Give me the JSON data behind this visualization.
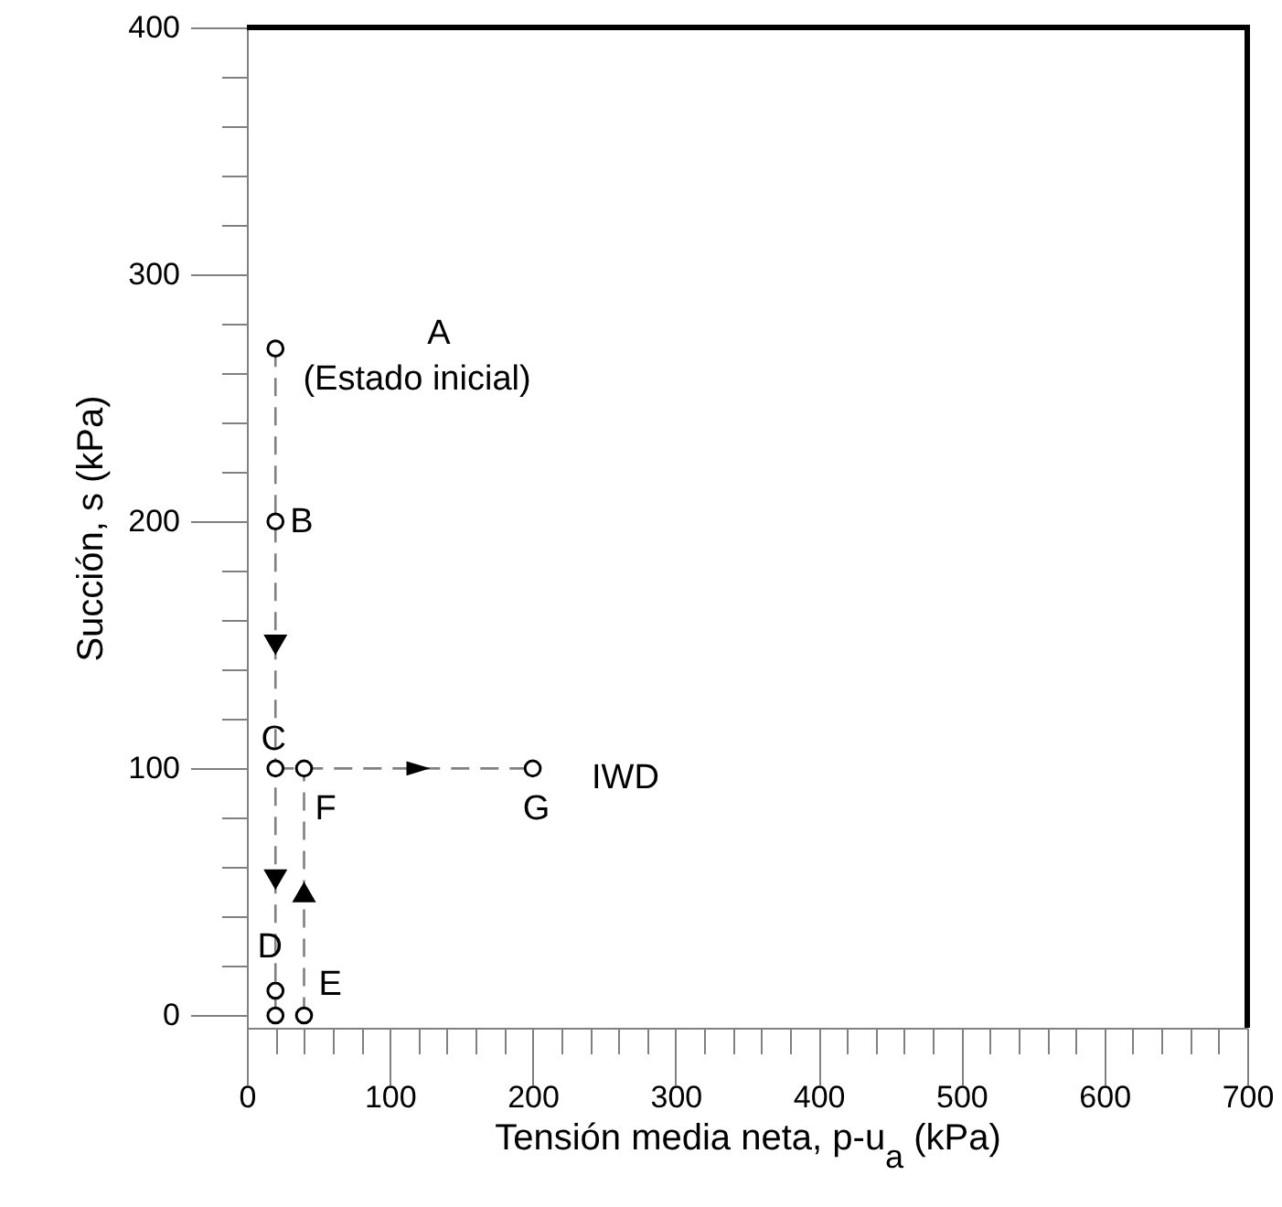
{
  "chart_data": {
    "type": "scatter",
    "xlabel": "Tensión media neta, p-u$_{a}$ (kPa)",
    "ylabel": "Succión, s (kPa)",
    "xlim": [
      0,
      700
    ],
    "xticks": [
      0,
      {
        "value": 20,
        "label": null
      },
      {
        "value": 40,
        "label": null
      },
      {
        "value": 60,
        "label": null
      },
      {
        "value": 80,
        "label": null
      },
      100,
      {
        "value": 120,
        "label": null
      },
      {
        "value": 140,
        "label": null
      },
      {
        "value": 160,
        "label": null
      },
      {
        "value": 180,
        "label": null
      },
      200,
      {
        "value": 220,
        "label": null
      },
      {
        "value": 240,
        "label": null
      },
      {
        "value": 260,
        "label": null
      },
      {
        "value": 280,
        "label": null
      },
      300,
      {
        "value": 320,
        "label": null
      },
      {
        "value": 340,
        "label": null
      },
      {
        "value": 360,
        "label": null
      },
      {
        "value": 380,
        "label": null
      },
      400,
      {
        "value": 420,
        "label": null
      },
      {
        "value": 440,
        "label": null
      },
      {
        "value": 460,
        "label": null
      },
      {
        "value": 480,
        "label": null
      },
      500,
      {
        "value": 520,
        "label": null
      },
      {
        "value": 540,
        "label": null
      },
      {
        "value": 560,
        "label": null
      },
      {
        "value": 580,
        "label": null
      },
      600,
      {
        "value": 620,
        "label": null
      },
      {
        "value": 640,
        "label": null
      },
      {
        "value": 660,
        "label": null
      },
      {
        "value": 680,
        "label": null
      },
      700
    ],
    "ylim": [
      -5,
      400
    ],
    "yticks": [
      0,
      {
        "value": 20,
        "label": null
      },
      {
        "value": 40,
        "label": null
      },
      {
        "value": 60,
        "label": null
      },
      {
        "value": 80,
        "label": null
      },
      100,
      {
        "value": 120,
        "label": null
      },
      {
        "value": 140,
        "label": null
      },
      {
        "value": 160,
        "label": null
      },
      {
        "value": 180,
        "label": null
      },
      200,
      {
        "value": 220,
        "label": null
      },
      {
        "value": 240,
        "label": null
      },
      {
        "value": 260,
        "label": null
      },
      {
        "value": 280,
        "label": null
      },
      300,
      {
        "value": 320,
        "label": null
      },
      {
        "value": 340,
        "label": null
      },
      {
        "value": 360,
        "label": null
      },
      {
        "value": 380,
        "label": null
      },
      400
    ],
    "series": [
      {
        "type": "line",
        "line_style": "dashed",
        "color": "#808080",
        "x": [
          20,
          20,
          20,
          20,
          20
        ],
        "values": [
          270,
          200,
          100,
          10,
          0
        ]
      },
      {
        "type": "line",
        "line_style": "dashed",
        "color": "#808080",
        "x": [
          40,
          40
        ],
        "values": [
          0,
          100
        ]
      },
      {
        "type": "line",
        "line_style": "dashed",
        "color": "#808080",
        "x": [
          20,
          40,
          200
        ],
        "values": [
          100,
          100,
          100
        ]
      },
      {
        "type": "scatter",
        "marker": "circle",
        "color": "#000000",
        "x": [
          20,
          20,
          20,
          20,
          20,
          40,
          40,
          200
        ],
        "values": [
          270,
          200,
          100,
          10,
          0,
          0,
          100,
          100
        ]
      }
    ],
    "annotations": [
      "A",
      "(Estado inicial)",
      {
        "text": "B",
        "x": 20,
        "y": 200
      },
      {
        "text": "C",
        "x": 20,
        "y": 100
      },
      {
        "text": "D",
        "x": 20,
        "y": 10
      },
      {
        "text": "E",
        "x": 40,
        "y": 0
      },
      {
        "text": "F",
        "x": 40,
        "y": 100
      },
      {
        "text": "G",
        "x": 200,
        "y": 100
      },
      "IWD"
    ]
  }
}
